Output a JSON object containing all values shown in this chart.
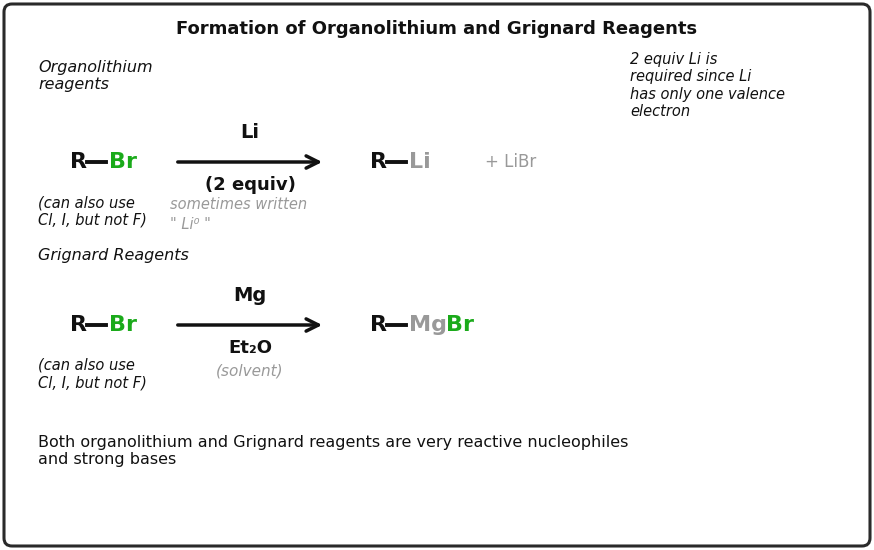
{
  "title": "Formation of Organolithium and Grignard Reagents",
  "title_fontsize": 13,
  "title_fontweight": "bold",
  "background_color": "#ffffff",
  "border_color": "#2a2a2a",
  "green_color": "#1aaa1a",
  "gray_color": "#999999",
  "black_color": "#111111",
  "section1_label": "Organolithium\nreagents",
  "section2_label": "Grignard Reagents",
  "note_top_right": "2 equiv Li is\nrequired since Li\nhas only one valence\nelectron",
  "note_li0_line1": "sometimes written",
  "note_li0_line2": "\" Li⁰ \"",
  "note_lialso": "(can also use\nCl, I, but not F)",
  "note_mgalso": "(can also use\nCl, I, but not F)",
  "bottom_note": "Both organolithium and Grignard reagents are very reactive nucleophiles\nand strong bases",
  "rxn1_reagent_above": "Li",
  "rxn1_reagent_below": "(2 equiv)",
  "rxn2_reagent_above": "Mg",
  "rxn2_reagent_below_bold": "Et₂O",
  "rxn2_reagent_below_italic": "(solvent)",
  "plus_libr": "+ LiBr",
  "figsize": [
    8.74,
    5.5
  ],
  "dpi": 100
}
